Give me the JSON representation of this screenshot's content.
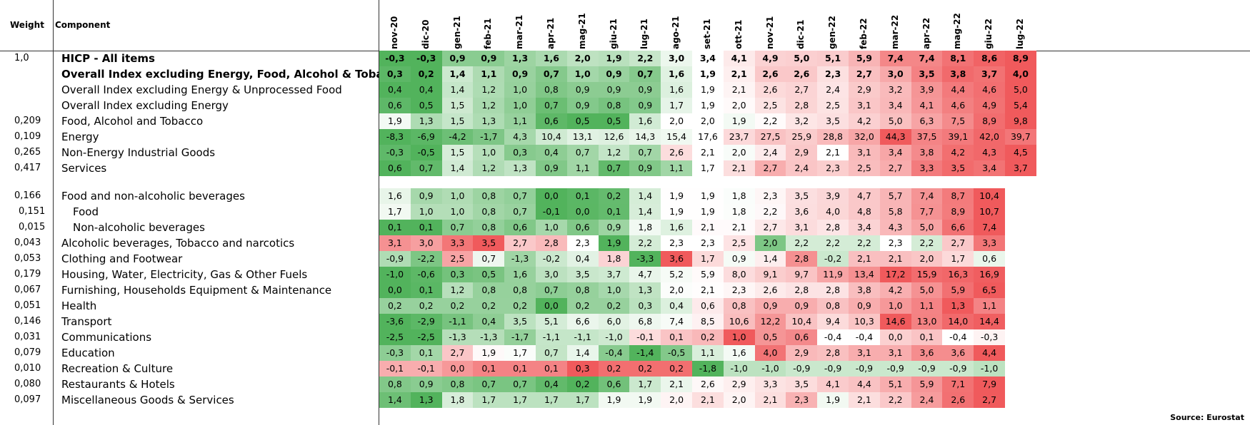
{
  "headers": {
    "weight": "Weight",
    "component": "Component"
  },
  "source": "Source: Eurostat",
  "colors": {
    "green": "#52b35c",
    "white": "#ffffff",
    "red": "#f05a5c"
  },
  "chart_data": {
    "type": "table",
    "months": [
      "nov-20",
      "dic-20",
      "gen-21",
      "feb-21",
      "mar-21",
      "apr-21",
      "mag-21",
      "giu-21",
      "lug-21",
      "ago-21",
      "set-21",
      "ott-21",
      "nov-21",
      "dic-21",
      "gen-22",
      "feb-22",
      "mar-22",
      "apr-22",
      "mag-22",
      "giu-22",
      "lug-22"
    ],
    "groups": [
      {
        "rows": [
          {
            "weight": "1,0",
            "label": "HICP - All items",
            "bold": true,
            "values": [
              "-0,3",
              "-0,3",
              "0,9",
              "0,9",
              "1,3",
              "1,6",
              "2,0",
              "1,9",
              "2,2",
              "3,0",
              "3,4",
              "4,1",
              "4,9",
              "5,0",
              "5,1",
              "5,9",
              "7,4",
              "7,4",
              "8,1",
              "8,6",
              "8,9"
            ]
          },
          {
            "weight": "",
            "label": "Overall Index excluding Energy, Food, Alcohol & Tobacco",
            "bold": true,
            "values": [
              "0,3",
              "0,2",
              "1,4",
              "1,1",
              "0,9",
              "0,7",
              "1,0",
              "0,9",
              "0,7",
              "1,6",
              "1,9",
              "2,1",
              "2,6",
              "2,6",
              "2,3",
              "2,7",
              "3,0",
              "3,5",
              "3,8",
              "3,7",
              "4,0"
            ]
          },
          {
            "weight": "",
            "label": "Overall Index excluding Energy & Unprocessed Food",
            "bold": false,
            "values": [
              "0,4",
              "0,4",
              "1,4",
              "1,2",
              "1,0",
              "0,8",
              "0,9",
              "0,9",
              "0,9",
              "1,6",
              "1,9",
              "2,1",
              "2,6",
              "2,7",
              "2,4",
              "2,9",
              "3,2",
              "3,9",
              "4,4",
              "4,6",
              "5,0"
            ]
          },
          {
            "weight": "",
            "label": "Overall Index excluding Energy",
            "bold": false,
            "values": [
              "0,6",
              "0,5",
              "1,5",
              "1,2",
              "1,0",
              "0,7",
              "0,9",
              "0,8",
              "0,9",
              "1,7",
              "1,9",
              "2,0",
              "2,5",
              "2,8",
              "2,5",
              "3,1",
              "3,4",
              "4,1",
              "4,6",
              "4,9",
              "5,4"
            ]
          },
          {
            "weight": "0,209",
            "label": "Food, Alcohol and Tobacco",
            "bold": false,
            "values": [
              "1,9",
              "1,3",
              "1,5",
              "1,3",
              "1,1",
              "0,6",
              "0,5",
              "0,5",
              "1,6",
              "2,0",
              "2,0",
              "1,9",
              "2,2",
              "3,2",
              "3,5",
              "4,2",
              "5,0",
              "6,3",
              "7,5",
              "8,9",
              "9,8"
            ]
          },
          {
            "weight": "0,109",
            "label": "Energy",
            "bold": false,
            "values": [
              "-8,3",
              "-6,9",
              "-4,2",
              "-1,7",
              "4,3",
              "10,4",
              "13,1",
              "12,6",
              "14,3",
              "15,4",
              "17,6",
              "23,7",
              "27,5",
              "25,9",
              "28,8",
              "32,0",
              "44,3",
              "37,5",
              "39,1",
              "42,0",
              "39,7"
            ]
          },
          {
            "weight": "0,265",
            "label": "Non-Energy Industrial Goods",
            "bold": false,
            "values": [
              "-0,3",
              "-0,5",
              "1,5",
              "1,0",
              "0,3",
              "0,4",
              "0,7",
              "1,2",
              "0,7",
              "2,6",
              "2,1",
              "2,0",
              "2,4",
              "2,9",
              "2,1",
              "3,1",
              "3,4",
              "3,8",
              "4,2",
              "4,3",
              "4,5"
            ]
          },
          {
            "weight": "0,417",
            "label": "Services",
            "bold": false,
            "values": [
              "0,6",
              "0,7",
              "1,4",
              "1,2",
              "1,3",
              "0,9",
              "1,1",
              "0,7",
              "0,9",
              "1,1",
              "1,7",
              "2,1",
              "2,7",
              "2,4",
              "2,3",
              "2,5",
              "2,7",
              "3,3",
              "3,5",
              "3,4",
              "3,7"
            ]
          }
        ]
      },
      {
        "rows": [
          {
            "weight": "0,166",
            "label": "Food and non-alcoholic beverages",
            "indent": 0,
            "values": [
              "1,6",
              "0,9",
              "1,0",
              "0,8",
              "0,7",
              "0,0",
              "0,1",
              "0,2",
              "1,4",
              "1,9",
              "1,9",
              "1,8",
              "2,3",
              "3,5",
              "3,9",
              "4,7",
              "5,7",
              "7,4",
              "8,7",
              "10,4"
            ]
          },
          {
            "weight": "0,151",
            "label": "Food",
            "indent": 1,
            "values": [
              "1,7",
              "1,0",
              "1,0",
              "0,8",
              "0,7",
              "-0,1",
              "0,0",
              "0,1",
              "1,4",
              "1,9",
              "1,9",
              "1,8",
              "2,2",
              "3,6",
              "4,0",
              "4,8",
              "5,8",
              "7,7",
              "8,9",
              "10,7"
            ]
          },
          {
            "weight": "0,015",
            "label": "Non-alcoholic beverages",
            "indent": 1,
            "values": [
              "0,1",
              "0,1",
              "0,7",
              "0,8",
              "0,6",
              "1,0",
              "0,6",
              "0,9",
              "1,8",
              "1,6",
              "2,1",
              "2,1",
              "2,7",
              "3,1",
              "2,8",
              "3,4",
              "4,3",
              "5,0",
              "6,6",
              "7,4"
            ]
          },
          {
            "weight": "0,043",
            "label": "Alcoholic beverages, Tobacco and narcotics",
            "indent": 0,
            "values": [
              "3,1",
              "3,0",
              "3,3",
              "3,5",
              "2,7",
              "2,8",
              "2,3",
              "1,9",
              "2,2",
              "2,3",
              "2,3",
              "2,5",
              "2,0",
              "2,2",
              "2,2",
              "2,2",
              "2,3",
              "2,2",
              "2,7",
              "3,3"
            ]
          },
          {
            "weight": "0,053",
            "label": "Clothing and Footwear",
            "indent": 0,
            "values": [
              "-0,9",
              "-2,2",
              "2,5",
              "0,7",
              "-1,3",
              "-0,2",
              "0,4",
              "1,8",
              "-3,3",
              "3,6",
              "1,7",
              "0,9",
              "1,4",
              "2,8",
              "-0,2",
              "2,1",
              "2,1",
              "2,0",
              "1,7",
              "0,6"
            ]
          },
          {
            "weight": "0,179",
            "label": "Housing, Water, Electricity, Gas & Other Fuels",
            "indent": 0,
            "values": [
              "-1,0",
              "-0,6",
              "0,3",
              "0,5",
              "1,6",
              "3,0",
              "3,5",
              "3,7",
              "4,7",
              "5,2",
              "5,9",
              "8,0",
              "9,1",
              "9,7",
              "11,9",
              "13,4",
              "17,2",
              "15,9",
              "16,3",
              "16,9"
            ]
          },
          {
            "weight": "0,067",
            "label": "Furnishing, Households Equipment & Maintenance",
            "indent": 0,
            "values": [
              "0,0",
              "0,1",
              "1,2",
              "0,8",
              "0,8",
              "0,7",
              "0,8",
              "1,0",
              "1,3",
              "2,0",
              "2,1",
              "2,3",
              "2,6",
              "2,8",
              "2,8",
              "3,8",
              "4,2",
              "5,0",
              "5,9",
              "6,5"
            ]
          },
          {
            "weight": "0,051",
            "label": "Health",
            "indent": 0,
            "values": [
              "0,2",
              "0,2",
              "0,2",
              "0,2",
              "0,2",
              "0,0",
              "0,2",
              "0,2",
              "0,3",
              "0,4",
              "0,6",
              "0,8",
              "0,9",
              "0,9",
              "0,8",
              "0,9",
              "1,0",
              "1,1",
              "1,3",
              "1,1"
            ]
          },
          {
            "weight": "0,146",
            "label": "Transport",
            "indent": 0,
            "values": [
              "-3,6",
              "-2,9",
              "-1,1",
              "0,4",
              "3,5",
              "5,1",
              "6,6",
              "6,0",
              "6,8",
              "7,4",
              "8,5",
              "10,6",
              "12,2",
              "10,4",
              "9,4",
              "10,3",
              "14,6",
              "13,0",
              "14,0",
              "14,4"
            ]
          },
          {
            "weight": "0,031",
            "label": "Communications",
            "indent": 0,
            "values": [
              "-2,5",
              "-2,5",
              "-1,3",
              "-1,3",
              "-1,7",
              "-1,1",
              "-1,1",
              "-1,0",
              "-0,1",
              "0,1",
              "0,2",
              "1,0",
              "0,5",
              "0,6",
              "-0,4",
              "-0,4",
              "0,0",
              "0,1",
              "-0,4",
              "-0,3"
            ]
          },
          {
            "weight": "0,079",
            "label": "Education",
            "indent": 0,
            "values": [
              "-0,3",
              "0,1",
              "2,7",
              "1,9",
              "1,7",
              "0,7",
              "1,4",
              "-0,4",
              "-1,4",
              "-0,5",
              "1,1",
              "1,6",
              "4,0",
              "2,9",
              "2,8",
              "3,1",
              "3,1",
              "3,6",
              "3,6",
              "4,4"
            ]
          },
          {
            "weight": "0,010",
            "label": "Recreation & Culture",
            "indent": 0,
            "values": [
              "-0,1",
              "-0,1",
              "0,0",
              "0,1",
              "0,1",
              "0,1",
              "0,3",
              "0,2",
              "0,2",
              "0,2",
              "-1,8",
              "-1,0",
              "-1,0",
              "-0,9",
              "-0,9",
              "-0,9",
              "-0,9",
              "-0,9",
              "-0,9",
              "-1,0"
            ]
          },
          {
            "weight": "0,080",
            "label": "Restaurants & Hotels",
            "indent": 0,
            "values": [
              "0,8",
              "0,9",
              "0,8",
              "0,7",
              "0,7",
              "0,4",
              "0,2",
              "0,6",
              "1,7",
              "2,1",
              "2,6",
              "2,9",
              "3,3",
              "3,5",
              "4,1",
              "4,4",
              "5,1",
              "5,9",
              "7,1",
              "7,9"
            ]
          },
          {
            "weight": "0,097",
            "label": "Miscellaneous Goods & Services",
            "indent": 0,
            "values": [
              "1,4",
              "1,3",
              "1,8",
              "1,7",
              "1,7",
              "1,7",
              "1,7",
              "1,9",
              "1,9",
              "2,0",
              "2,1",
              "2,0",
              "2,1",
              "2,3",
              "1,9",
              "2,1",
              "2,2",
              "2,4",
              "2,6",
              "2,7"
            ]
          }
        ]
      }
    ]
  }
}
